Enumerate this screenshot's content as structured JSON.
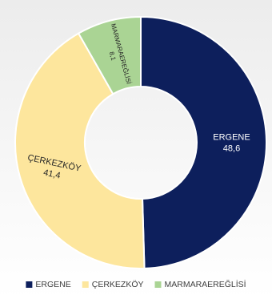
{
  "chart_data": {
    "type": "pie",
    "variant": "donut",
    "title": "",
    "categories": [
      "ERGENE",
      "ÇERKEZKÖY",
      "MARMARAEREĞLİSİ"
    ],
    "values": [
      48.6,
      41.4,
      8.1
    ],
    "value_labels": [
      "48,6",
      "41,4",
      "8,1"
    ],
    "colors": [
      "#0d1f5c",
      "#fde69d",
      "#aad494"
    ],
    "label_colors": [
      "#ffffff",
      "#262626",
      "#262626"
    ],
    "legend": {
      "position": "bottom",
      "entries": [
        "ERGENE",
        "ÇERKEZKÖY",
        "MARMARAEREĞLİSİ"
      ]
    },
    "start_angle_deg": 0,
    "direction": "clockwise"
  }
}
